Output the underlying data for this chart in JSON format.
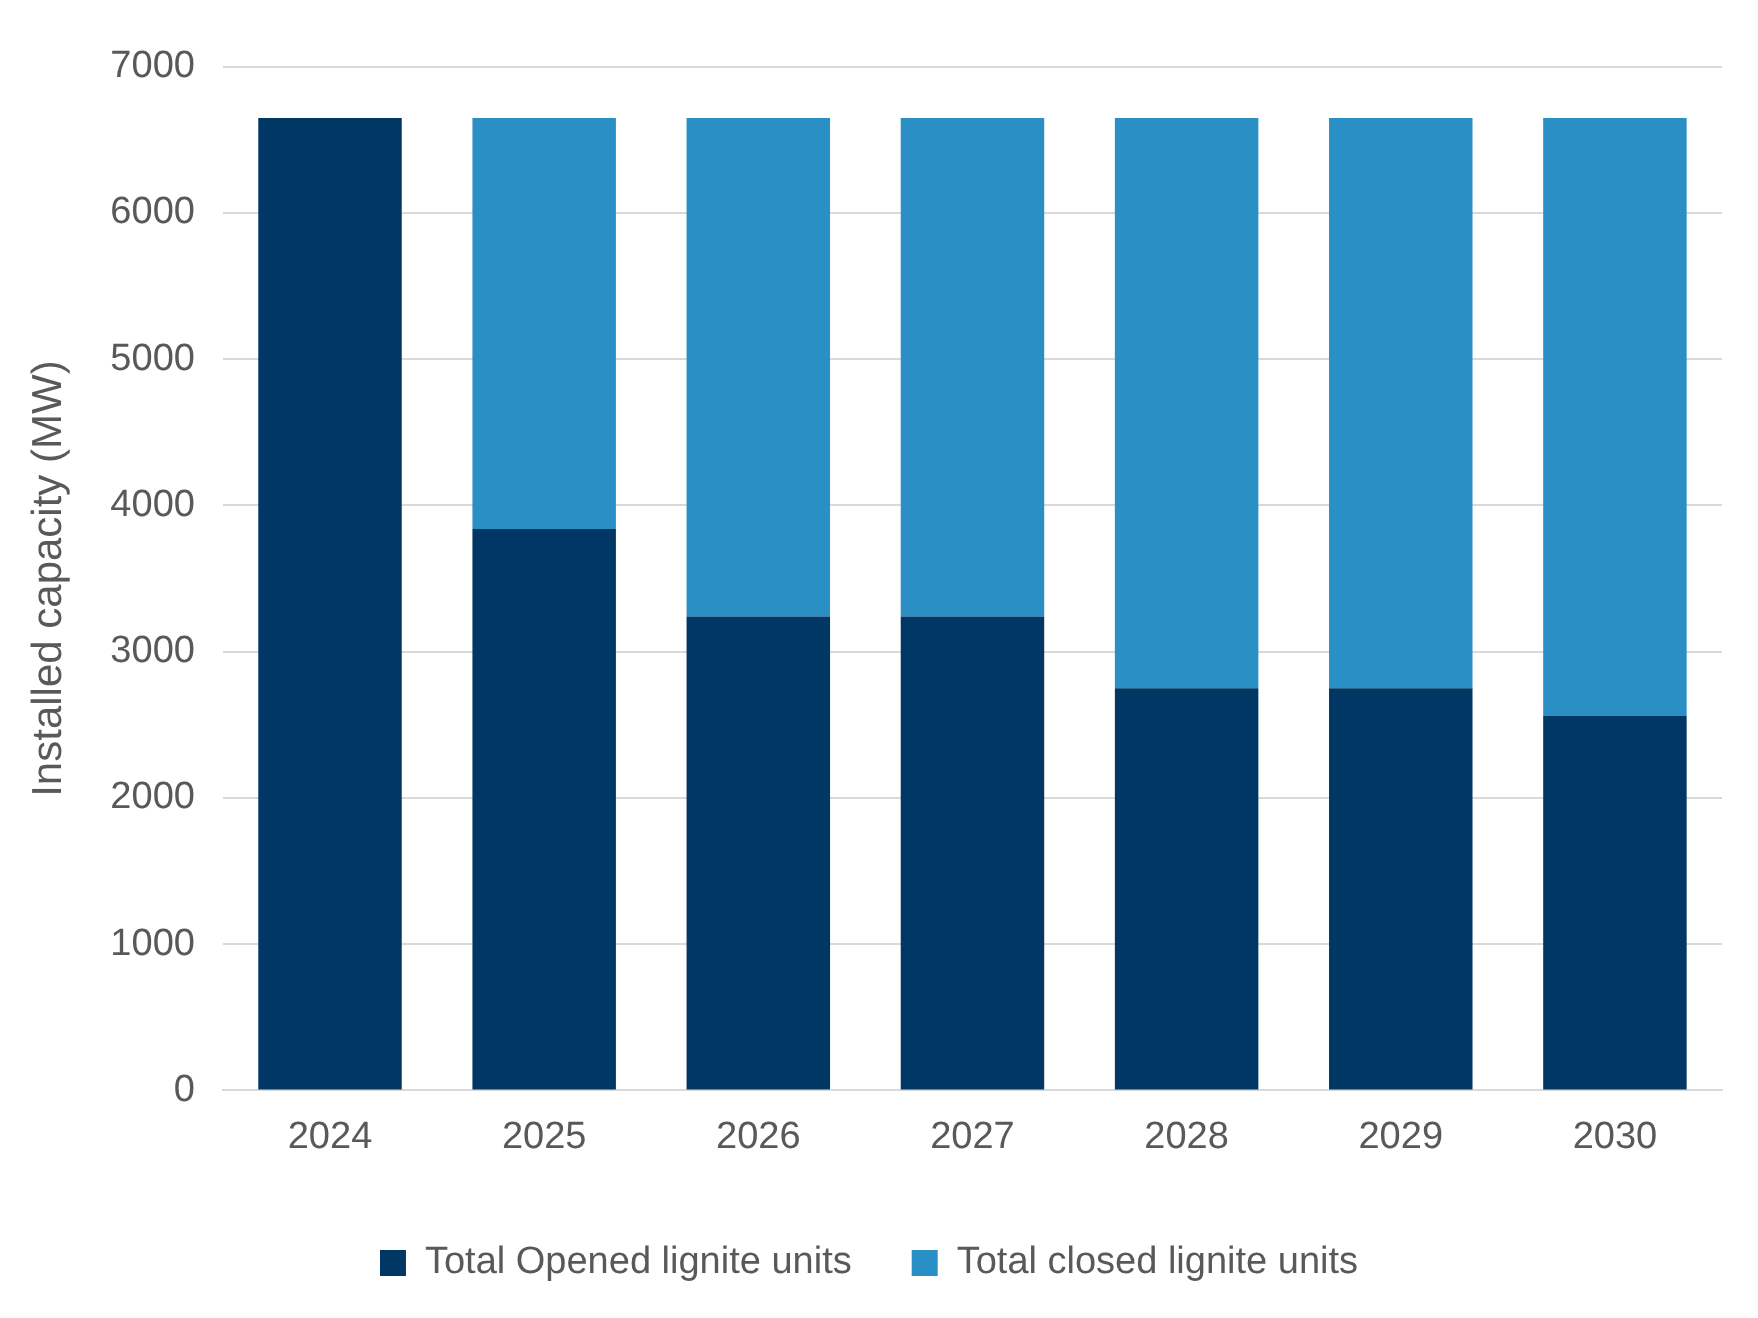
{
  "chart_data": {
    "type": "bar",
    "ylabel": "Installed capacity (MW)",
    "categories": [
      "2024",
      "2025",
      "2026",
      "2027",
      "2028",
      "2029",
      "2030"
    ],
    "series": [
      {
        "name": "Total Opened lignite units",
        "color": "#003764",
        "values": [
          6650,
          3840,
          3240,
          3240,
          2750,
          2750,
          2560
        ]
      },
      {
        "name": "Total closed lignite units",
        "color": "#2a8fc4",
        "values": [
          0,
          2810,
          3410,
          3410,
          3900,
          3900,
          4090
        ]
      }
    ],
    "stacked": true,
    "ylim": [
      0,
      7000
    ],
    "yticks": [
      0,
      1000,
      2000,
      3000,
      4000,
      5000,
      6000,
      7000
    ],
    "grid": "y",
    "legend": "bottom"
  }
}
